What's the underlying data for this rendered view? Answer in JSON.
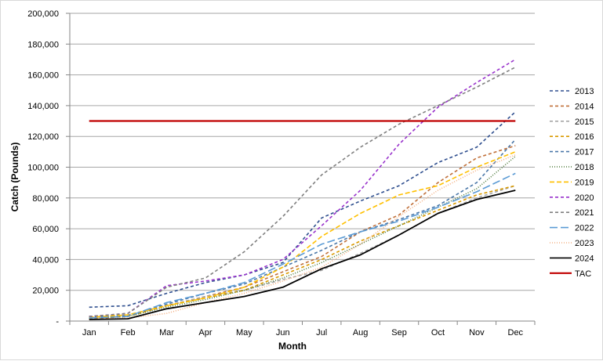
{
  "chart_data": {
    "type": "line",
    "title": "",
    "xlabel": "Month",
    "ylabel": "Catch (Pounds)",
    "ylim": [
      0,
      200000
    ],
    "y_ticks": [
      0,
      20000,
      40000,
      60000,
      80000,
      100000,
      120000,
      140000,
      160000,
      180000,
      200000
    ],
    "y_tick_labels": [
      "-",
      "20,000",
      "40,000",
      "60,000",
      "80,000",
      "100,000",
      "120,000",
      "140,000",
      "160,000",
      "180,000",
      "200,000"
    ],
    "categories": [
      "Jan",
      "Feb",
      "Mar",
      "Apr",
      "May",
      "Jun",
      "Jul",
      "Aug",
      "Sep",
      "Oct",
      "Nov",
      "Dec"
    ],
    "grid": "horizontal",
    "legend_position": "right",
    "series": [
      {
        "name": "2013",
        "color": "#2f4f8f",
        "dash": "4,3",
        "values": [
          9000,
          10000,
          18000,
          25000,
          30000,
          38000,
          67000,
          78000,
          88000,
          103000,
          113000,
          136000
        ]
      },
      {
        "name": "2014",
        "color": "#c0703a",
        "dash": "4,3",
        "values": [
          1500,
          3000,
          10000,
          16000,
          22000,
          32000,
          42000,
          58000,
          69000,
          90000,
          106000,
          114000
        ]
      },
      {
        "name": "2015",
        "color": "#a6a6a6",
        "dash": "4,3",
        "values": [
          3000,
          4000,
          10000,
          16000,
          20000,
          27000,
          33000,
          44000,
          56000,
          70000,
          80000,
          88000
        ]
      },
      {
        "name": "2016",
        "color": "#d99a00",
        "dash": "4,3",
        "values": [
          2000,
          3000,
          10000,
          15000,
          20000,
          30000,
          40000,
          52000,
          62000,
          72000,
          82000,
          88000
        ]
      },
      {
        "name": "2017",
        "color": "#4a77a8",
        "dash": "4,3",
        "values": [
          2500,
          3500,
          11000,
          18000,
          24000,
          35000,
          46000,
          58000,
          66000,
          75000,
          90000,
          118000
        ]
      },
      {
        "name": "2018",
        "color": "#4e7a3a",
        "dash": "1,2",
        "values": [
          2000,
          3000,
          9000,
          14000,
          20000,
          28000,
          38000,
          50000,
          62000,
          74000,
          86000,
          107000
        ]
      },
      {
        "name": "2019",
        "color": "#ffc000",
        "dash": "6,3",
        "values": [
          2500,
          4000,
          10000,
          15000,
          22000,
          35000,
          55000,
          70000,
          82000,
          88000,
          100000,
          110000
        ]
      },
      {
        "name": "2020",
        "color": "#9933cc",
        "dash": "4,3",
        "values": [
          3000,
          5000,
          23000,
          26000,
          30000,
          40000,
          62000,
          85000,
          115000,
          139000,
          155000,
          170000
        ]
      },
      {
        "name": "2021",
        "color": "#808080",
        "dash": "4,3",
        "values": [
          3000,
          5000,
          22000,
          28000,
          45000,
          68000,
          95000,
          113000,
          128000,
          140000,
          152000,
          165000
        ]
      },
      {
        "name": "2022",
        "color": "#5b9bd5",
        "dash": "10,4",
        "values": [
          2000,
          3000,
          12000,
          18000,
          25000,
          37000,
          50000,
          58000,
          65000,
          74000,
          84000,
          96000
        ]
      },
      {
        "name": "2023",
        "color": "#f4b183",
        "dash": "1,2",
        "values": [
          1000,
          2000,
          5000,
          12000,
          18000,
          26000,
          35000,
          50000,
          68000,
          85000,
          98000,
          108000
        ]
      },
      {
        "name": "2024",
        "color": "#000000",
        "dash": "",
        "values": [
          1000,
          1500,
          8000,
          12000,
          16000,
          22000,
          34000,
          43000,
          56000,
          70000,
          79000,
          85000
        ]
      },
      {
        "name": "TAC",
        "color": "#c00000",
        "dash": "",
        "values": [
          130000,
          130000,
          130000,
          130000,
          130000,
          130000,
          130000,
          130000,
          130000,
          130000,
          130000,
          130000
        ]
      }
    ]
  }
}
